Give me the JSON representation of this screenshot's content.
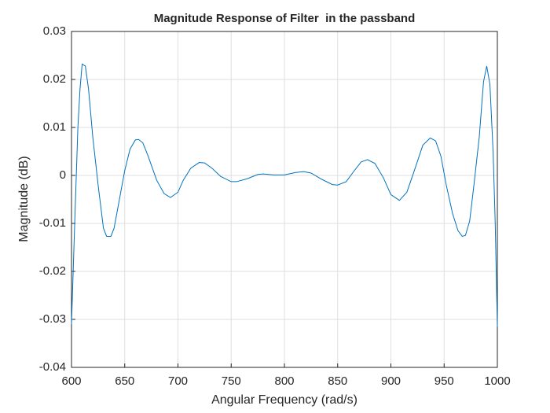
{
  "chart_data": {
    "type": "line",
    "title": "Magnitude Response of Filter  in the passband",
    "xlabel": "Angular Frequency (rad/s)",
    "ylabel": "Magnitude (dB)",
    "x": [
      600,
      603,
      606,
      608,
      610,
      613,
      616,
      620,
      625,
      630,
      633,
      637,
      640,
      645,
      650,
      655,
      660,
      663,
      667,
      672,
      680,
      687,
      693,
      700,
      705,
      712,
      720,
      725,
      732,
      740,
      750,
      755,
      765,
      775,
      780,
      790,
      800,
      810,
      818,
      825,
      835,
      845,
      850,
      858,
      865,
      872,
      878,
      885,
      893,
      900,
      908,
      915,
      922,
      930,
      937,
      942,
      947,
      952,
      958,
      963,
      967,
      970,
      974,
      978,
      983,
      987,
      990,
      993,
      996,
      998,
      1000
    ],
    "series": [
      {
        "name": "Magnitude",
        "color": "#0072bd",
        "values": [
          -0.031,
          -0.01,
          0.01,
          0.018,
          0.0232,
          0.0228,
          0.018,
          0.008,
          -0.002,
          -0.011,
          -0.0127,
          -0.0127,
          -0.011,
          -0.005,
          0.001,
          0.0055,
          0.0074,
          0.0075,
          0.0068,
          0.004,
          -0.001,
          -0.0038,
          -0.0046,
          -0.0035,
          -0.001,
          0.0015,
          0.0027,
          0.0026,
          0.0015,
          -0.0002,
          -0.0013,
          -0.0013,
          -0.0007,
          0.0002,
          0.0003,
          0.0001,
          0.0001,
          0.0006,
          0.0008,
          0.0005,
          -0.0008,
          -0.0019,
          -0.002,
          -0.0013,
          0.0008,
          0.0028,
          0.0033,
          0.0025,
          -0.0005,
          -0.004,
          -0.0052,
          -0.0035,
          0.001,
          0.0063,
          0.0078,
          0.0072,
          0.004,
          -0.002,
          -0.008,
          -0.0115,
          -0.0127,
          -0.0125,
          -0.0095,
          -0.002,
          0.008,
          0.0195,
          0.0228,
          0.019,
          0.005,
          -0.01,
          -0.0315
        ]
      }
    ],
    "xlim": [
      600,
      1000
    ],
    "xticks": [
      600,
      650,
      700,
      750,
      800,
      850,
      900,
      950,
      1000
    ],
    "ylim": [
      -0.04,
      0.03
    ],
    "yticks": [
      -0.04,
      -0.03,
      -0.02,
      -0.01,
      0,
      0.01,
      0.02,
      0.03
    ],
    "grid": true
  }
}
